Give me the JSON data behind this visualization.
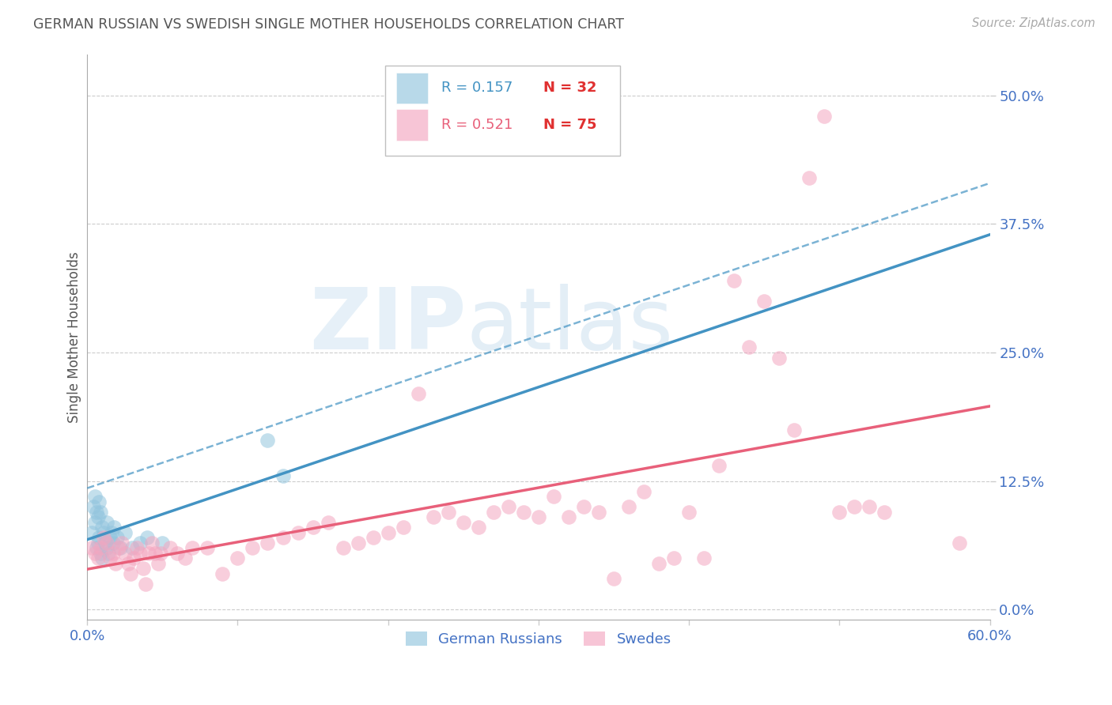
{
  "title": "GERMAN RUSSIAN VS SWEDISH SINGLE MOTHER HOUSEHOLDS CORRELATION CHART",
  "source": "Source: ZipAtlas.com",
  "ylabel": "Single Mother Households",
  "xlim": [
    0.0,
    0.6
  ],
  "ylim": [
    -0.01,
    0.54
  ],
  "ytick_labels": [
    "0.0%",
    "12.5%",
    "25.0%",
    "37.5%",
    "50.0%"
  ],
  "ytick_vals": [
    0.0,
    0.125,
    0.25,
    0.375,
    0.5
  ],
  "xtick_vals": [
    0.0,
    0.1,
    0.2,
    0.3,
    0.4,
    0.5,
    0.6
  ],
  "xtick_labels": [
    "0.0%",
    "",
    "",
    "",
    "",
    "",
    "60.0%"
  ],
  "blue_color": "#92c5de",
  "pink_color": "#f4a6c0",
  "blue_line_color": "#4393c3",
  "pink_line_color": "#e8607a",
  "axis_label_color": "#4472c4",
  "german_russian_x": [
    0.003,
    0.004,
    0.005,
    0.005,
    0.006,
    0.006,
    0.007,
    0.007,
    0.008,
    0.008,
    0.009,
    0.009,
    0.01,
    0.01,
    0.011,
    0.012,
    0.013,
    0.013,
    0.014,
    0.015,
    0.016,
    0.017,
    0.018,
    0.02,
    0.022,
    0.025,
    0.03,
    0.035,
    0.04,
    0.05,
    0.12,
    0.13
  ],
  "german_russian_y": [
    0.075,
    0.1,
    0.11,
    0.085,
    0.095,
    0.06,
    0.09,
    0.065,
    0.105,
    0.07,
    0.095,
    0.055,
    0.08,
    0.05,
    0.075,
    0.065,
    0.06,
    0.085,
    0.055,
    0.07,
    0.075,
    0.065,
    0.08,
    0.07,
    0.06,
    0.075,
    0.06,
    0.065,
    0.07,
    0.065,
    0.165,
    0.13
  ],
  "swede_x": [
    0.003,
    0.005,
    0.007,
    0.009,
    0.011,
    0.013,
    0.015,
    0.017,
    0.019,
    0.021,
    0.023,
    0.025,
    0.027,
    0.029,
    0.031,
    0.033,
    0.035,
    0.037,
    0.039,
    0.041,
    0.043,
    0.045,
    0.047,
    0.049,
    0.055,
    0.06,
    0.065,
    0.07,
    0.08,
    0.09,
    0.1,
    0.11,
    0.12,
    0.13,
    0.14,
    0.15,
    0.16,
    0.17,
    0.18,
    0.19,
    0.2,
    0.21,
    0.22,
    0.23,
    0.24,
    0.25,
    0.26,
    0.27,
    0.28,
    0.29,
    0.3,
    0.31,
    0.32,
    0.33,
    0.34,
    0.35,
    0.36,
    0.37,
    0.38,
    0.39,
    0.4,
    0.41,
    0.42,
    0.43,
    0.44,
    0.45,
    0.46,
    0.47,
    0.48,
    0.49,
    0.5,
    0.51,
    0.52,
    0.53,
    0.58
  ],
  "swede_y": [
    0.06,
    0.055,
    0.05,
    0.06,
    0.07,
    0.065,
    0.05,
    0.055,
    0.045,
    0.06,
    0.065,
    0.055,
    0.045,
    0.035,
    0.05,
    0.06,
    0.055,
    0.04,
    0.025,
    0.055,
    0.065,
    0.055,
    0.045,
    0.055,
    0.06,
    0.055,
    0.05,
    0.06,
    0.06,
    0.035,
    0.05,
    0.06,
    0.065,
    0.07,
    0.075,
    0.08,
    0.085,
    0.06,
    0.065,
    0.07,
    0.075,
    0.08,
    0.21,
    0.09,
    0.095,
    0.085,
    0.08,
    0.095,
    0.1,
    0.095,
    0.09,
    0.11,
    0.09,
    0.1,
    0.095,
    0.03,
    0.1,
    0.115,
    0.045,
    0.05,
    0.095,
    0.05,
    0.14,
    0.32,
    0.255,
    0.3,
    0.245,
    0.175,
    0.42,
    0.48,
    0.095,
    0.1,
    0.1,
    0.095,
    0.065
  ]
}
